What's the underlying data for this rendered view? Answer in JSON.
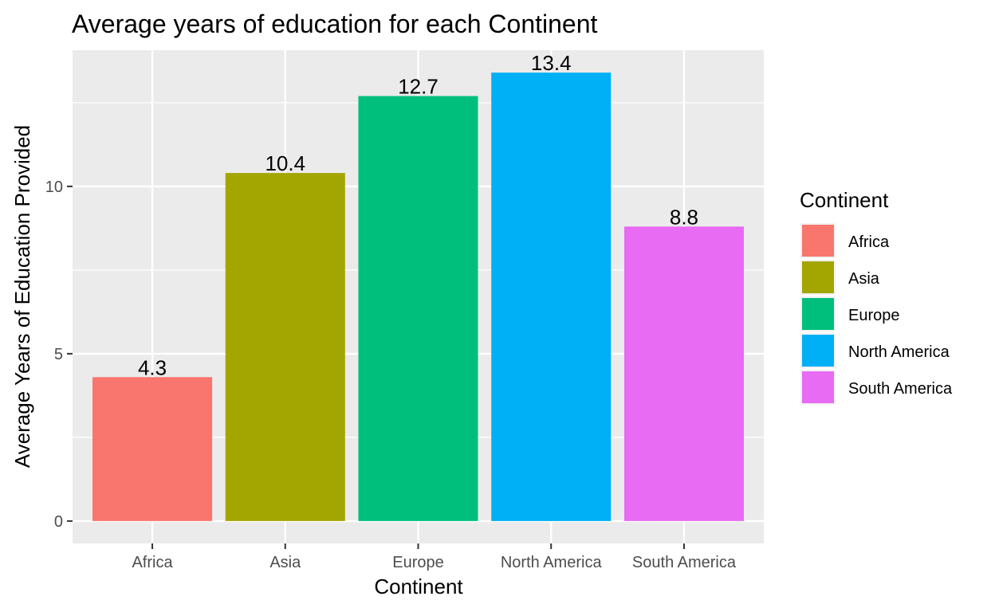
{
  "chart_data": {
    "type": "bar",
    "title": "Average years of education for each Continent",
    "xlabel": "Continent",
    "ylabel": "Average Years of Education Provided",
    "categories": [
      "Africa",
      "Asia",
      "Europe",
      "North America",
      "South America"
    ],
    "values": [
      4.3,
      10.4,
      12.7,
      13.4,
      8.8
    ],
    "data_labels": [
      "4.3",
      "10.4",
      "12.7",
      "13.4",
      "8.8"
    ],
    "colors": [
      "#F8766D",
      "#A3A500",
      "#00BF7D",
      "#00B0F6",
      "#E76BF3"
    ],
    "ylim": [
      -0.67,
      14.07
    ],
    "yticks": [
      0,
      5,
      10
    ],
    "grid": true,
    "background": "#EBEBEB",
    "legend": {
      "title": "Continent",
      "placement": "right",
      "items": [
        "Africa",
        "Asia",
        "Europe",
        "North America",
        "South America"
      ]
    }
  }
}
